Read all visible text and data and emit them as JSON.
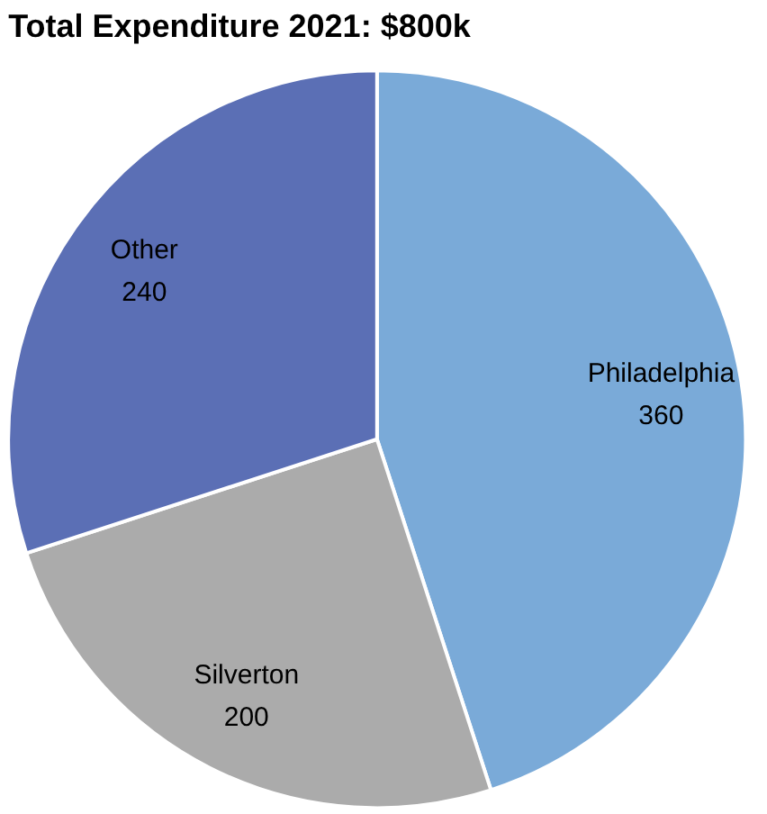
{
  "chart_data": {
    "type": "pie",
    "title": "Total Expenditure 2021: $800k",
    "categories": [
      "Philadelphia",
      "Silverton",
      "Other"
    ],
    "values": [
      360,
      200,
      240
    ],
    "colors": [
      "#7aaad8",
      "#ababab",
      "#5b6fb5"
    ],
    "data_labels": true
  }
}
